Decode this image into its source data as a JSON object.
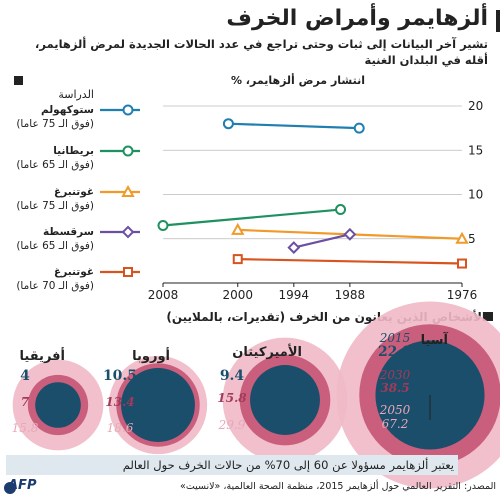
{
  "title": "ألزهايمر وأمراض الخرف",
  "subtitle": "تشير آخر البيانات إلى ثبات وحتى تراجع في عدد الحالات الجديدة لمرض ألزهايمر، أقله في البلدان الغنية",
  "line_section_label": "انتشار مرض ألزهايمر، %",
  "study_header": "الدراسة",
  "bubble_section_label": "الأشخاص الذين يعانون من الخرف (تقديرات، بالملايين)",
  "footer_note": "يعتبر ألزهايمر مسؤولا عن 60 إلى 70% من حالات الخرف حول العالم",
  "source": "المصدر: التقرير العالمي حول ألزهايمر 2015، منظمة الصحة العالمية، «لانسيت»",
  "logo": "AFP",
  "colors": {
    "blue": "#1f7fb0",
    "green": "#1e9160",
    "orange": "#f09a2a",
    "purple": "#6b4fa1",
    "red": "#d9531e",
    "navy": "#1a4e6b",
    "ring_mid": "#a33a5a",
    "ring_outer": "#e8a8b8"
  },
  "chart_data": [
    {
      "type": "line",
      "title": "",
      "ylabel": "انتشار مرض ألزهايمر، %",
      "ylim": [
        0,
        20
      ],
      "yticks": [
        5,
        10,
        15,
        20
      ],
      "xlim": [
        1976,
        2008
      ],
      "xticks": [
        2008,
        2000,
        1994,
        1988,
        1976
      ],
      "x_reversed": true,
      "grid": true,
      "legend_position": "left",
      "series": [
        {
          "name": "ستوكهولم",
          "sub": "(فوق الـ 75 عاما)",
          "marker": "circle",
          "color": "#1f7fb0",
          "points": [
            [
              2001,
              18
            ],
            [
              1987,
              17.5
            ]
          ]
        },
        {
          "name": "بريطانيا",
          "sub": "(فوق الـ 65 عاما)",
          "marker": "circle",
          "color": "#1e9160",
          "points": [
            [
              2008,
              6.5
            ],
            [
              1989,
              8.3
            ]
          ]
        },
        {
          "name": "غوتنبرغ",
          "sub": "(فوق الـ 75 عاما)",
          "marker": "triangle",
          "color": "#f09a2a",
          "points": [
            [
              2000,
              6
            ],
            [
              1976,
              5
            ]
          ]
        },
        {
          "name": "سرقسطة",
          "sub": "(فوق الـ 65 عاما)",
          "marker": "diamond",
          "color": "#6b4fa1",
          "points": [
            [
              1994,
              4
            ],
            [
              1988,
              5.5
            ]
          ]
        },
        {
          "name": "غوتنبرغ",
          "sub": "(فوق الـ 70 عاما)",
          "marker": "square",
          "color": "#d9531e",
          "points": [
            [
              2000,
              2.7
            ],
            [
              1976,
              2.2
            ]
          ]
        }
      ]
    },
    {
      "type": "bubble",
      "title": "الأشخاص الذين يعانون من الخرف (تقديرات، بالملايين)",
      "years": [
        "2015",
        "2030",
        "2050"
      ],
      "regions": [
        {
          "name": "آسيا",
          "values": [
            22.9,
            38.5,
            67.2
          ]
        },
        {
          "name": "الأميركيتان",
          "values": [
            9.4,
            15.8,
            29.9
          ]
        },
        {
          "name": "أوروبا",
          "values": [
            10.5,
            13.4,
            18.6
          ]
        },
        {
          "name": "أفريقيا",
          "values": [
            4,
            7,
            15.8
          ]
        }
      ]
    }
  ]
}
